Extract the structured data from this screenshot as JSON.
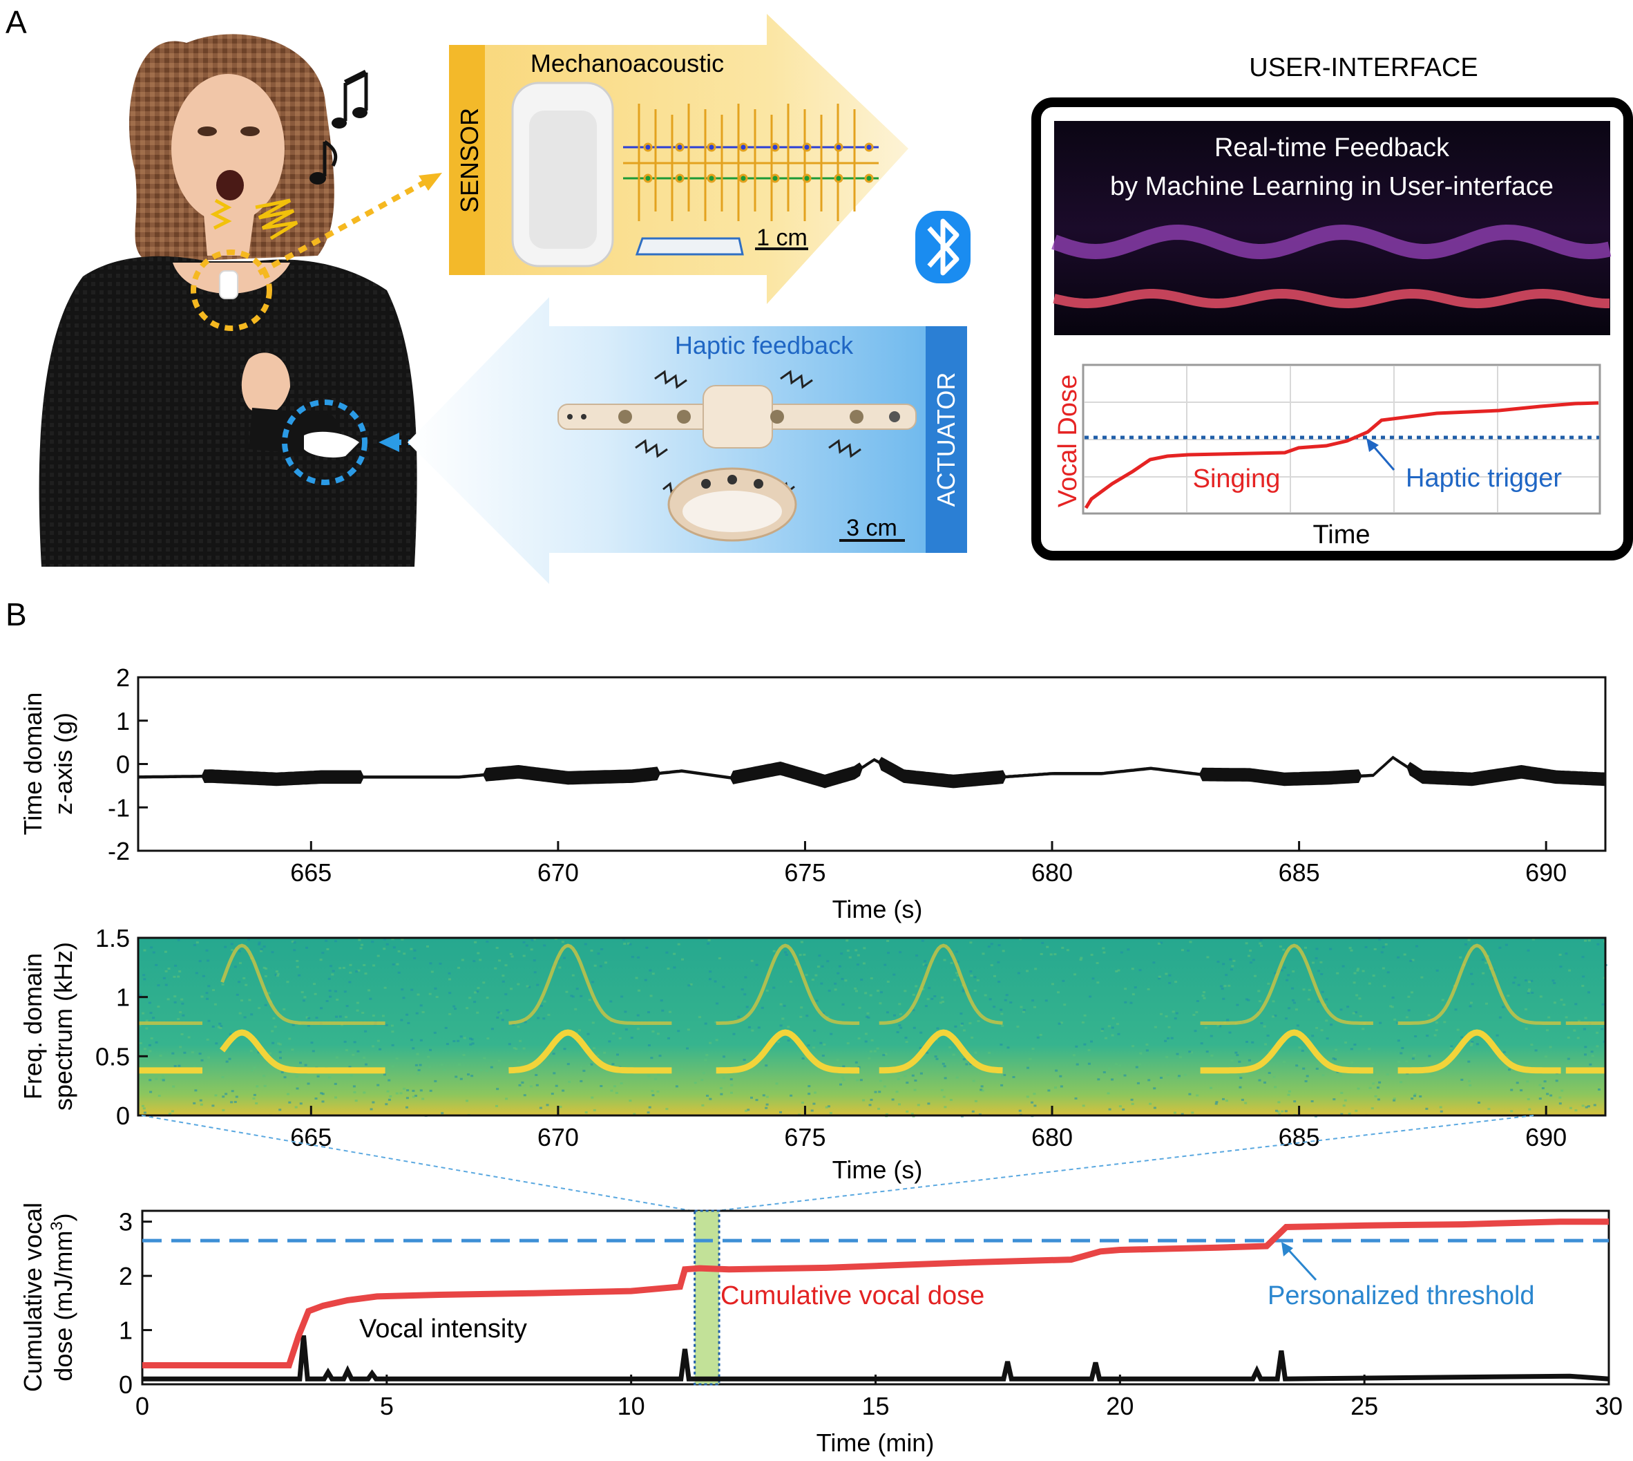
{
  "panel_a": {
    "label": "A",
    "sensor": {
      "title": "Mechanoacoustic",
      "side_label": "SENSOR",
      "scale_bar": "1 cm"
    },
    "actuator": {
      "title": "Haptic feedback",
      "side_label": "ACTUATOR",
      "scale_bar": "3 cm"
    },
    "bluetooth_icon": "bluetooth-icon",
    "ui": {
      "heading": "USER-INTERFACE",
      "banner_line1": "Real-time Feedback",
      "banner_line2": "by Machine Learning in User-interface",
      "chart": {
        "ylabel": "Vocal Dose",
        "xlabel": "Time",
        "annotation_singing": "Singing",
        "annotation_trigger": "Haptic trigger"
      }
    }
  },
  "panel_b": {
    "label": "B",
    "time_domain": {
      "ylabel_line1": "Time domain",
      "ylabel_line2": "z-axis (g)",
      "xlabel": "Time (s)",
      "yticks": [
        "2",
        "1",
        "0",
        "-1",
        "-2"
      ],
      "xticks": [
        "665",
        "670",
        "675",
        "680",
        "685",
        "690"
      ]
    },
    "spectrum": {
      "ylabel_line1": "Freq. domain",
      "ylabel_line2": "spectrum (kHz)",
      "xlabel": "Time (s)",
      "yticks": [
        "1.5",
        "1",
        "0.5",
        "0"
      ],
      "xticks": [
        "665",
        "670",
        "675",
        "680",
        "685",
        "690"
      ]
    },
    "dose": {
      "ylabel_line1": "Cumulative vocal",
      "ylabel_line2_prefix": "dose (mJ/mm",
      "ylabel_line2_sup": "3",
      "ylabel_line2_suffix": ")",
      "xlabel": "Time (min)",
      "yticks": [
        "3",
        "2",
        "1",
        "0"
      ],
      "xticks": [
        "0",
        "5",
        "10",
        "15",
        "20",
        "25",
        "30"
      ],
      "label_dose": "Cumulative vocal dose",
      "label_threshold": "Personalized threshold",
      "label_intensity": "Vocal intensity"
    }
  },
  "chart_data": [
    {
      "type": "line",
      "name": "time-domain",
      "xlim": [
        661.5,
        691.2
      ],
      "ylim": [
        -2,
        2
      ],
      "x": [
        661.5,
        663,
        664.3,
        665.2,
        666,
        668,
        669.2,
        670.2,
        671.5,
        672.5,
        673.5,
        674.5,
        675.4,
        676.0,
        676.4,
        677,
        678,
        679,
        680,
        681,
        682,
        683,
        684,
        684.7,
        685.6,
        686.5,
        686.9,
        687.5,
        688.5,
        689.5,
        690.2,
        691.2
      ],
      "values": [
        -0.3,
        -0.28,
        -0.35,
        -0.3,
        -0.3,
        -0.3,
        -0.18,
        -0.32,
        -0.28,
        -0.16,
        -0.32,
        -0.1,
        -0.4,
        -0.2,
        0.1,
        -0.28,
        -0.4,
        -0.3,
        -0.22,
        -0.22,
        -0.1,
        -0.24,
        -0.25,
        -0.35,
        -0.32,
        -0.26,
        0.15,
        -0.3,
        -0.35,
        -0.18,
        -0.3,
        -0.35
      ]
    },
    {
      "type": "heatmap",
      "name": "spectrum",
      "xlim": [
        661.5,
        691.2
      ],
      "ylim": [
        0,
        1.5
      ],
      "fundamental_peaks_s": [
        663.6,
        670.2,
        674.6,
        677.8,
        684.9,
        688.6
      ],
      "peak_freq_khz": 0.7,
      "baseline_freq_khz": 0.38
    },
    {
      "type": "line",
      "xlim": [
        0,
        30
      ],
      "ylim": [
        0,
        3.2
      ],
      "threshold": 2.65,
      "series": [
        {
          "name": "Cumulative vocal dose",
          "x": [
            0,
            3.0,
            3.2,
            3.4,
            3.7,
            4.2,
            4.8,
            6,
            8,
            10,
            11.0,
            11.1,
            11.4,
            12,
            14,
            15.5,
            17,
            19,
            19.6,
            20,
            21,
            22,
            23,
            23.4,
            25,
            27,
            29,
            30
          ],
          "values": [
            0.35,
            0.35,
            0.9,
            1.35,
            1.45,
            1.55,
            1.62,
            1.65,
            1.68,
            1.72,
            1.8,
            2.12,
            2.14,
            2.12,
            2.15,
            2.2,
            2.25,
            2.3,
            2.45,
            2.48,
            2.5,
            2.52,
            2.55,
            2.9,
            2.93,
            2.95,
            3.0,
            3.0
          ]
        },
        {
          "name": "Vocal intensity",
          "x": [
            0,
            3.1,
            3.3,
            3.5,
            3.8,
            4.2,
            4.7,
            11.0,
            11.1,
            11.3,
            17.7,
            19.5,
            22.8,
            23.3,
            29.2,
            30
          ],
          "values": [
            0.1,
            0.1,
            0.9,
            0.1,
            0.22,
            0.25,
            0.2,
            0.1,
            0.65,
            0.1,
            0.42,
            0.4,
            0.25,
            0.62,
            0.15,
            0.1
          ]
        }
      ]
    }
  ]
}
